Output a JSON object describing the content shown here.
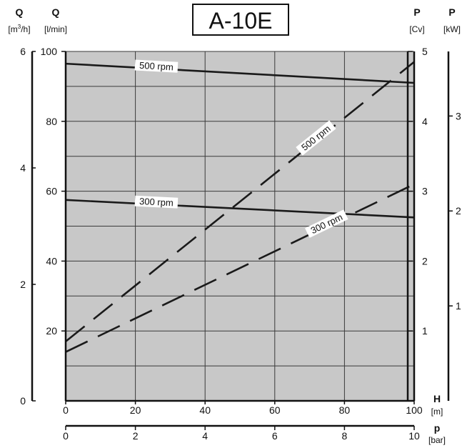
{
  "chart_data": {
    "type": "line",
    "title": "A-10E",
    "axes": {
      "q_m3h": {
        "symbol": "Q",
        "unit": "[m³/h]",
        "unit_base": "[m",
        "unit_sup": "3",
        "unit_tail": "/h]",
        "range": [
          0,
          6
        ],
        "ticks": [
          "0",
          "2",
          "4",
          "6"
        ]
      },
      "q_lmin": {
        "symbol": "Q",
        "unit": "[l/min]",
        "range": [
          0,
          100
        ],
        "ticks": [
          "20",
          "40",
          "60",
          "80",
          "100"
        ]
      },
      "p_cv": {
        "symbol": "P",
        "unit": "[Cv]",
        "range": [
          0,
          5
        ],
        "ticks": [
          "1",
          "2",
          "3",
          "4",
          "5"
        ]
      },
      "p_kw": {
        "symbol": "P",
        "unit": "[kW]",
        "range": [
          0,
          3.68
        ],
        "ticks": [
          "1",
          "2",
          "3"
        ]
      },
      "h_m": {
        "symbol": "H",
        "unit": "[m]",
        "range": [
          0,
          100
        ],
        "ticks": [
          "0",
          "20",
          "40",
          "60",
          "80",
          "100"
        ]
      },
      "p_bar": {
        "symbol": "p",
        "unit": "[bar]",
        "range": [
          0,
          10
        ],
        "ticks": [
          "0",
          "2",
          "4",
          "6",
          "8",
          "10"
        ]
      }
    },
    "series": [
      {
        "name": "500 rpm",
        "kind": "flow",
        "axis": "q_lmin",
        "style": "solid",
        "x": [
          0,
          100
        ],
        "y": [
          96.5,
          91
        ]
      },
      {
        "name": "300 rpm",
        "kind": "flow",
        "axis": "q_lmin",
        "style": "solid",
        "x": [
          0,
          100
        ],
        "y": [
          57.5,
          52.5
        ]
      },
      {
        "name": "500 rpm",
        "kind": "power",
        "axis": "p_cv",
        "style": "dashed",
        "x": [
          0,
          100
        ],
        "y": [
          0.85,
          4.85
        ]
      },
      {
        "name": "300 rpm",
        "kind": "power",
        "axis": "p_cv",
        "style": "dashed",
        "x": [
          0,
          100
        ],
        "y": [
          0.7,
          3.1
        ]
      }
    ],
    "grid": true
  },
  "colors": {
    "plot_bg": "#c8c8c8",
    "line": "#1a1a1a",
    "grid": "#3a3a3a"
  }
}
